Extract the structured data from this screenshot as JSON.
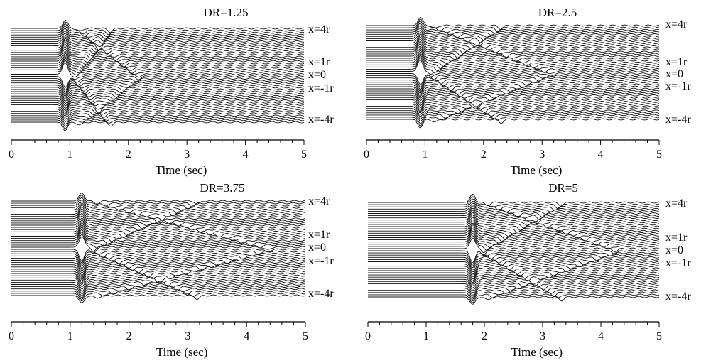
{
  "chart_data": [
    {
      "type": "line",
      "title": "DR=1.25",
      "xlabel": "Time (sec)",
      "ylabel": "",
      "xlim": [
        0,
        5
      ],
      "x_ticks": [
        "0",
        "1",
        "2",
        "3",
        "4",
        "5"
      ],
      "station_labels": [
        "x=4r",
        "x=1r",
        "x=0",
        "x=-1r",
        "x=-4r"
      ],
      "pulse_arrival_sec": 0.92,
      "reflection_return_sec": 2.05,
      "grid": false,
      "legend": "none"
    },
    {
      "type": "line",
      "title": "DR=2.5",
      "xlabel": "Time (sec)",
      "ylabel": "",
      "xlim": [
        0,
        5
      ],
      "x_ticks": [
        "0",
        "1",
        "2",
        "3",
        "4",
        "5"
      ],
      "station_labels": [
        "x=4r",
        "x=1r",
        "x=0",
        "x=-1r",
        "x=-4r"
      ],
      "pulse_arrival_sec": 0.92,
      "reflection_return_sec": 3.15,
      "grid": false,
      "legend": "none"
    },
    {
      "type": "line",
      "title": "DR=3.75",
      "xlabel": "Time (sec)",
      "ylabel": "",
      "xlim": [
        0,
        5
      ],
      "x_ticks": [
        "0",
        "1",
        "2",
        "3",
        "4",
        "5"
      ],
      "station_labels": [
        "x=4r",
        "x=1r",
        "x=0",
        "x=-1r",
        "x=-4r"
      ],
      "pulse_arrival_sec": 1.2,
      "reflection_return_sec": 4.5,
      "grid": false,
      "legend": "none"
    },
    {
      "type": "line",
      "title": "DR=5",
      "xlabel": "Time (sec)",
      "ylabel": "",
      "xlim": [
        0,
        5
      ],
      "x_ticks": [
        "0",
        "1",
        "2",
        "3",
        "4",
        "5"
      ],
      "station_labels": [
        "x=4r",
        "x=1r",
        "x=0",
        "x=-1r",
        "x=-4r"
      ],
      "pulse_arrival_sec": 1.8,
      "reflection_return_sec": 4.3,
      "grid": false,
      "legend": "none"
    }
  ]
}
